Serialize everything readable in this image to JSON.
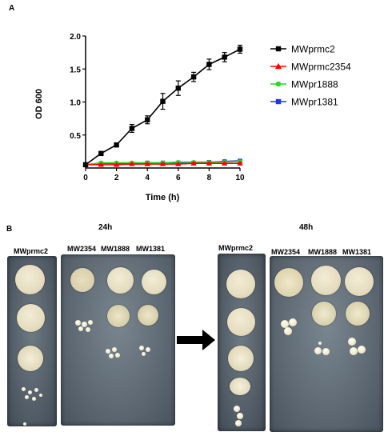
{
  "panel_a_label": "A",
  "panel_b_label": "B",
  "chart_data": {
    "type": "line",
    "xlabel": "Time (h)",
    "ylabel": "OD 600",
    "x": [
      0,
      1,
      2,
      3,
      4,
      5,
      6,
      7,
      8,
      9,
      10
    ],
    "xticks": [
      "0",
      "2",
      "4",
      "6",
      "8",
      "10"
    ],
    "yticks": [
      "0.5",
      "1.0",
      "1.5",
      "2.0"
    ],
    "xlim": [
      0,
      10
    ],
    "ylim": [
      0,
      2.0
    ],
    "legend_position": "right",
    "series": [
      {
        "name": "MWprmc2",
        "color": "#000000",
        "marker": "square",
        "values": [
          0.05,
          0.22,
          0.35,
          0.6,
          0.73,
          1.01,
          1.21,
          1.38,
          1.57,
          1.68,
          1.8
        ],
        "errors": [
          0.02,
          0.03,
          0.03,
          0.06,
          0.06,
          0.12,
          0.11,
          0.07,
          0.08,
          0.07,
          0.06
        ]
      },
      {
        "name": "MWprmc2354",
        "color": "#ff0000",
        "marker": "triangle",
        "values": [
          0.05,
          0.05,
          0.05,
          0.06,
          0.06,
          0.06,
          0.06,
          0.07,
          0.07,
          0.07,
          0.07
        ],
        "errors": [
          0.01,
          0.01,
          0.01,
          0.01,
          0.01,
          0.01,
          0.01,
          0.01,
          0.01,
          0.01,
          0.01
        ]
      },
      {
        "name": "MWpr1888",
        "color": "#22dd22",
        "marker": "circle",
        "values": [
          0.05,
          0.08,
          0.08,
          0.08,
          0.08,
          0.08,
          0.09,
          0.09,
          0.09,
          0.09,
          0.1
        ],
        "errors": [
          0.01,
          0.01,
          0.01,
          0.01,
          0.01,
          0.01,
          0.01,
          0.01,
          0.01,
          0.01,
          0.01
        ]
      },
      {
        "name": "MWpr1381",
        "color": "#2233ff",
        "marker": "square",
        "values": [
          0.05,
          0.07,
          0.07,
          0.07,
          0.08,
          0.08,
          0.08,
          0.08,
          0.09,
          0.1,
          0.11
        ],
        "errors": [
          0.01,
          0.01,
          0.01,
          0.01,
          0.01,
          0.01,
          0.01,
          0.01,
          0.01,
          0.01,
          0.01
        ]
      }
    ]
  },
  "panel_b": {
    "time_24h": "24h",
    "time_48h": "48h",
    "left_strain": "MWprmc2",
    "strains": [
      "MW2354",
      "MW1888",
      "MW1381"
    ]
  }
}
